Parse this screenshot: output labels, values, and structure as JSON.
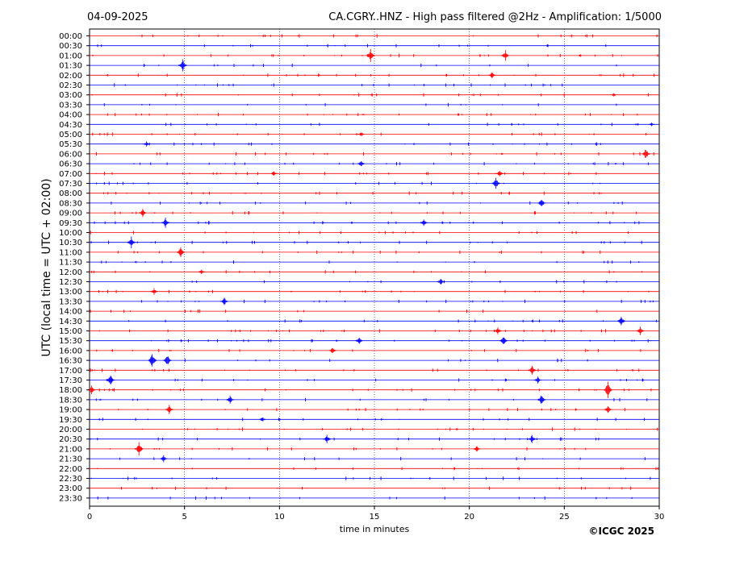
{
  "header": {
    "date": "04-09-2025",
    "title": "CA.CGRY..HNZ - High pass filtered @2Hz - Amplification: 1/5000"
  },
  "copyright": "©ICGC 2025",
  "colors": {
    "odd_trace": "#ff0000",
    "even_trace": "#0000ff",
    "grid": "#000080",
    "frame": "#000000"
  },
  "chart_data": {
    "type": "line",
    "title": "CA.CGRY..HNZ - High pass filtered @2Hz - Amplification: 1/5000",
    "xlabel": "time in minutes",
    "ylabel": "UTC (local time = UTC + 02:00)",
    "xlim": [
      0,
      30
    ],
    "x_ticks": [
      "0",
      "5",
      "10",
      "15",
      "20",
      "25",
      "30"
    ],
    "grid": "vertical dotted at 5, 10, 15, 20, 25",
    "rows": [
      "00:00",
      "00:30",
      "01:00",
      "01:30",
      "02:00",
      "02:30",
      "03:00",
      "03:30",
      "04:00",
      "04:30",
      "05:00",
      "05:30",
      "06:00",
      "06:30",
      "07:00",
      "07:30",
      "08:00",
      "08:30",
      "09:00",
      "09:30",
      "10:00",
      "10:30",
      "11:00",
      "11:30",
      "12:00",
      "12:30",
      "13:00",
      "13:30",
      "14:00",
      "14:30",
      "15:00",
      "15:30",
      "16:00",
      "16:30",
      "17:00",
      "17:30",
      "18:00",
      "18:30",
      "19:00",
      "19:30",
      "20:00",
      "20:30",
      "21:00",
      "21:30",
      "22:00",
      "22:30",
      "23:00",
      "23:30"
    ],
    "trace_colors": [
      "red",
      "blue"
    ],
    "events": [
      {
        "row": "01:00",
        "t": 14.8,
        "amp": 8
      },
      {
        "row": "01:00",
        "t": 21.9,
        "amp": 6
      },
      {
        "row": "01:30",
        "t": 4.9,
        "amp": 8
      },
      {
        "row": "02:00",
        "t": 21.2,
        "amp": 4
      },
      {
        "row": "03:00",
        "t": 27.6,
        "amp": 2
      },
      {
        "row": "04:30",
        "t": 29.6,
        "amp": 2
      },
      {
        "row": "05:00",
        "t": 14.3,
        "amp": 3
      },
      {
        "row": "05:30",
        "t": 3.0,
        "amp": 3
      },
      {
        "row": "06:00",
        "t": 29.3,
        "amp": 7
      },
      {
        "row": "06:30",
        "t": 14.3,
        "amp": 4
      },
      {
        "row": "07:00",
        "t": 9.7,
        "amp": 3
      },
      {
        "row": "07:00",
        "t": 21.6,
        "amp": 4
      },
      {
        "row": "07:30",
        "t": 21.4,
        "amp": 7
      },
      {
        "row": "08:30",
        "t": 23.8,
        "amp": 6
      },
      {
        "row": "09:00",
        "t": 2.8,
        "amp": 5
      },
      {
        "row": "09:30",
        "t": 4.0,
        "amp": 6
      },
      {
        "row": "09:30",
        "t": 17.6,
        "amp": 4
      },
      {
        "row": "10:30",
        "t": 2.2,
        "amp": 7
      },
      {
        "row": "11:00",
        "t": 4.8,
        "amp": 6
      },
      {
        "row": "12:00",
        "t": 5.9,
        "amp": 3
      },
      {
        "row": "12:30",
        "t": 18.5,
        "amp": 4
      },
      {
        "row": "13:00",
        "t": 3.4,
        "amp": 4
      },
      {
        "row": "13:30",
        "t": 7.1,
        "amp": 5
      },
      {
        "row": "14:30",
        "t": 28.0,
        "amp": 7
      },
      {
        "row": "15:00",
        "t": 21.5,
        "amp": 4
      },
      {
        "row": "15:00",
        "t": 29.0,
        "amp": 5
      },
      {
        "row": "15:30",
        "t": 21.8,
        "amp": 6
      },
      {
        "row": "15:30",
        "t": 14.2,
        "amp": 5
      },
      {
        "row": "16:00",
        "t": 12.8,
        "amp": 4
      },
      {
        "row": "16:30",
        "t": 4.1,
        "amp": 7
      },
      {
        "row": "16:30",
        "t": 3.3,
        "amp": 9
      },
      {
        "row": "17:00",
        "t": 23.3,
        "amp": 6
      },
      {
        "row": "17:30",
        "t": 1.1,
        "amp": 8
      },
      {
        "row": "17:30",
        "t": 23.6,
        "amp": 4
      },
      {
        "row": "18:00",
        "t": 27.3,
        "amp": 11
      },
      {
        "row": "18:00",
        "t": 0.1,
        "amp": 5
      },
      {
        "row": "18:30",
        "t": 23.8,
        "amp": 7
      },
      {
        "row": "18:30",
        "t": 7.4,
        "amp": 5
      },
      {
        "row": "19:00",
        "t": 4.2,
        "amp": 6
      },
      {
        "row": "19:00",
        "t": 27.3,
        "amp": 5
      },
      {
        "row": "19:30",
        "t": 9.1,
        "amp": 3
      },
      {
        "row": "20:30",
        "t": 23.3,
        "amp": 5
      },
      {
        "row": "20:30",
        "t": 12.5,
        "amp": 5
      },
      {
        "row": "21:00",
        "t": 2.6,
        "amp": 9
      },
      {
        "row": "21:00",
        "t": 20.4,
        "amp": 4
      },
      {
        "row": "21:30",
        "t": 3.9,
        "amp": 4
      }
    ]
  }
}
